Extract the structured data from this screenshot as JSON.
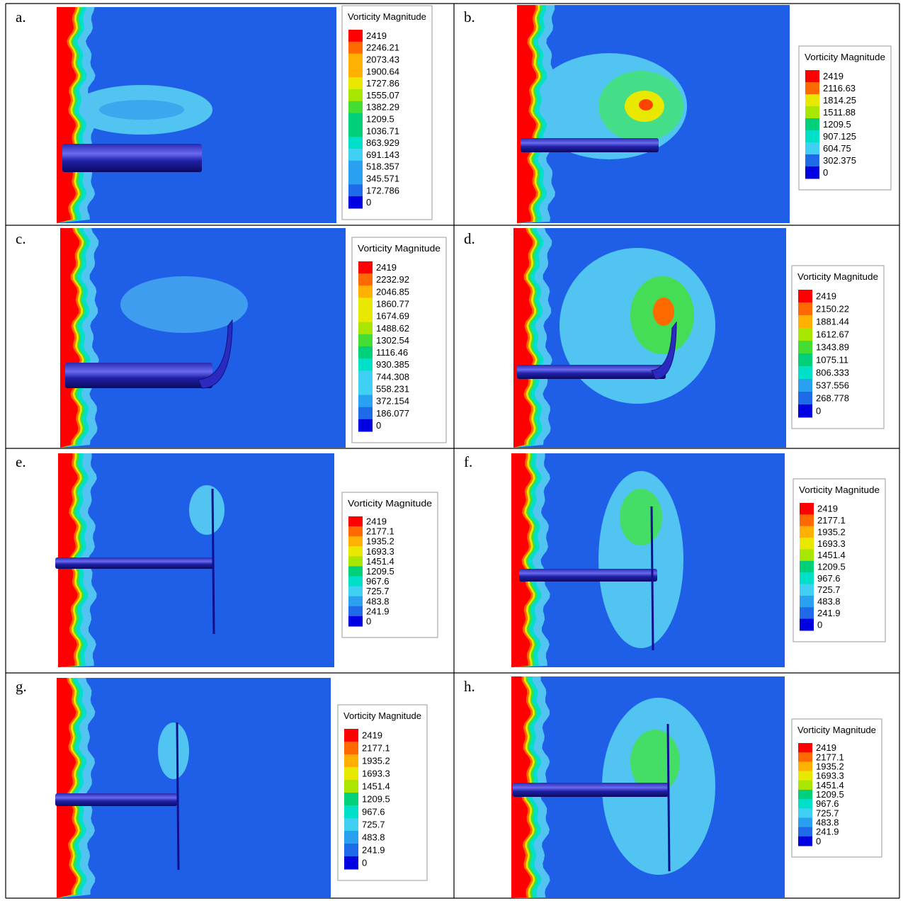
{
  "panels": [
    {
      "label": "a.",
      "legend": {
        "title": "Vorticity Magnitude",
        "values": [
          "2419",
          "2246.21",
          "2073.43",
          "1900.64",
          "1727.86",
          "1555.07",
          "1382.29",
          "1209.5",
          "1036.71",
          "863.929",
          "691.143",
          "518.357",
          "345.571",
          "172.786",
          "0"
        ]
      }
    },
    {
      "label": "b.",
      "legend": {
        "title": "Vorticity Magnitude",
        "values": [
          "2419",
          "2116.63",
          "1814.25",
          "1511.88",
          "1209.5",
          "907.125",
          "604.75",
          "302.375",
          "0"
        ]
      }
    },
    {
      "label": "c.",
      "legend": {
        "title": "Vorticity Magnitude",
        "values": [
          "2419",
          "2232.92",
          "2046.85",
          "1860.77",
          "1674.69",
          "1488.62",
          "1302.54",
          "1116.46",
          "930.385",
          "744.308",
          "558.231",
          "372.154",
          "186.077",
          "0"
        ]
      }
    },
    {
      "label": "d.",
      "legend": {
        "title": "Vorticity Magnitude",
        "values": [
          "2419",
          "2150.22",
          "1881.44",
          "1612.67",
          "1343.89",
          "1075.11",
          "806.333",
          "537.556",
          "268.778",
          "0"
        ]
      }
    },
    {
      "label": "e.",
      "legend": {
        "title": "Vorticity Magnitude",
        "values": [
          "2419",
          "2177.1",
          "1935.2",
          "1693.3",
          "1451.4",
          "1209.5",
          "967.6",
          "725.7",
          "483.8",
          "241.9",
          "0"
        ]
      }
    },
    {
      "label": "f.",
      "legend": {
        "title": "Vorticity Magnitude",
        "values": [
          "2419",
          "2177.1",
          "1935.2",
          "1693.3",
          "1451.4",
          "1209.5",
          "967.6",
          "725.7",
          "483.8",
          "241.9",
          "0"
        ]
      }
    },
    {
      "label": "g.",
      "legend": {
        "title": "Vorticity Magnitude",
        "values": [
          "2419",
          "2177.1",
          "1935.2",
          "1693.3",
          "1451.4",
          "1209.5",
          "967.6",
          "725.7",
          "483.8",
          "241.9",
          "0"
        ]
      }
    },
    {
      "label": "h.",
      "legend": {
        "title": "Vorticity Magnitude",
        "values": [
          "2419",
          "2177.1",
          "1935.2",
          "1693.3",
          "1451.4",
          "1209.5",
          "967.6",
          "725.7",
          "483.8",
          "241.9",
          "0"
        ]
      }
    }
  ]
}
